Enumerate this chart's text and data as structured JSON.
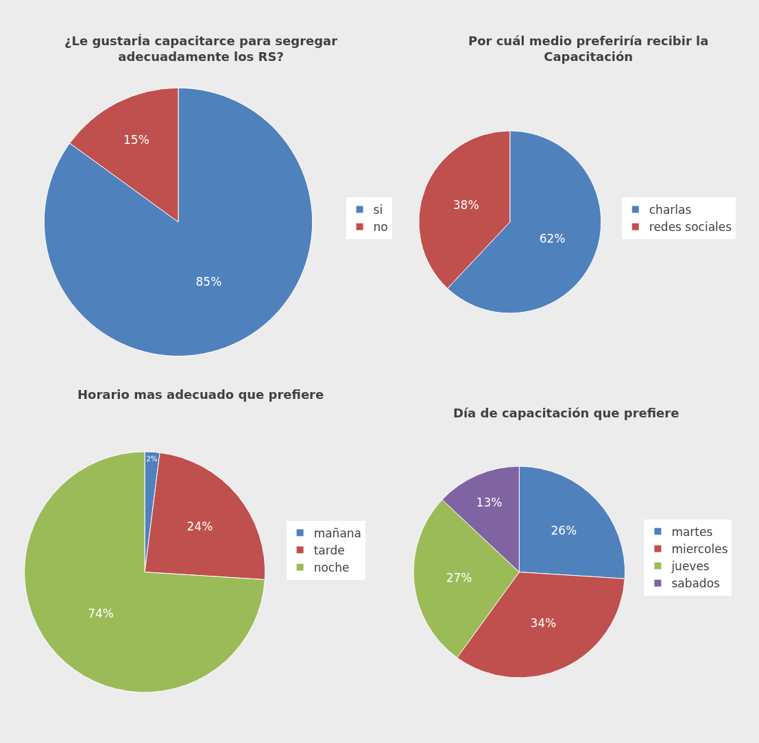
{
  "chart_data": [
    {
      "type": "pie",
      "title": "¿Le gustarÍa capacitarce para segregar adecuadamente los RS?",
      "categories": [
        "si",
        "no"
      ],
      "values": [
        85,
        15
      ],
      "value_labels": [
        "85%",
        "15%"
      ],
      "colors": [
        "#4f81bd",
        "#c0504d"
      ],
      "legend": "right"
    },
    {
      "type": "pie",
      "title": "Por cuál medio preferiría recibir la Capacitación",
      "categories": [
        "charlas",
        "redes sociales"
      ],
      "values": [
        62,
        38
      ],
      "value_labels": [
        "62%",
        "38%"
      ],
      "colors": [
        "#4f81bd",
        "#c0504d"
      ],
      "legend": "right"
    },
    {
      "type": "pie",
      "title": "Horario mas adecuado que prefiere",
      "categories": [
        "mañana",
        "tarde",
        "noche"
      ],
      "values": [
        2,
        24,
        74
      ],
      "value_labels": [
        "2%",
        "24%",
        "74%"
      ],
      "colors": [
        "#4f81bd",
        "#c0504d",
        "#9bbb59"
      ],
      "legend": "right"
    },
    {
      "type": "pie",
      "title": "Día de capacitación que prefiere",
      "categories": [
        "martes",
        "miercoles",
        "jueves",
        "sabados"
      ],
      "values": [
        26,
        34,
        27,
        13
      ],
      "value_labels": [
        "26%",
        "34%",
        "27%",
        "13%"
      ],
      "colors": [
        "#4f81bd",
        "#c0504d",
        "#9bbb59",
        "#8064a2"
      ],
      "legend": "right"
    }
  ]
}
